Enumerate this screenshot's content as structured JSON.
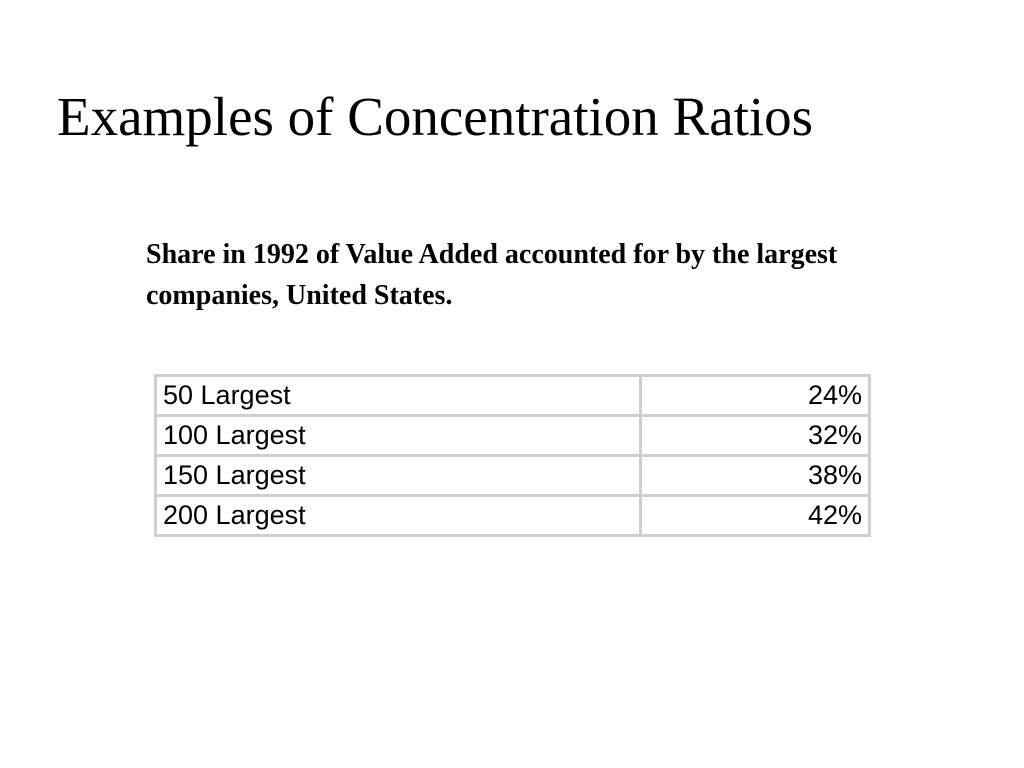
{
  "title": "Examples of Concentration Ratios",
  "subtitle": "Share in 1992 of Value Added accounted for by the largest companies, United States.",
  "table": {
    "rows": [
      [
        "50 Largest",
        "24%"
      ],
      [
        "100 Largest",
        "32%"
      ],
      [
        "150 Largest",
        "38%"
      ],
      [
        "200 Largest",
        "42%"
      ]
    ]
  }
}
